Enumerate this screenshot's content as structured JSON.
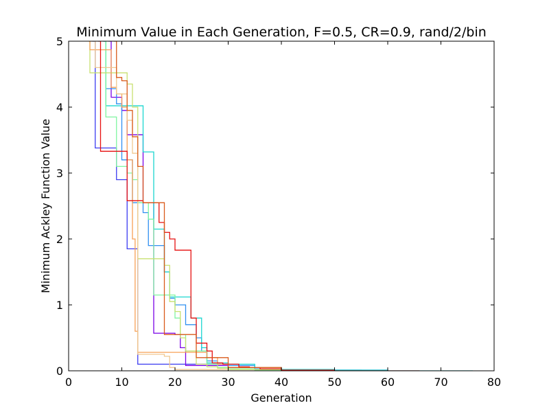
{
  "chart_data": {
    "type": "line",
    "title": "Minimum Value in Each Generation, F=0.5, CR=0.9, rand/2/bin",
    "xlabel": "Generation",
    "ylabel": "Minimum Ackley Function Value",
    "xlim": [
      0,
      80
    ],
    "ylim": [
      0,
      5
    ],
    "xticks": [
      0,
      10,
      20,
      30,
      40,
      50,
      60,
      70,
      80
    ],
    "yticks": [
      0,
      1,
      2,
      3,
      4,
      5
    ],
    "grid": false,
    "legend": "none",
    "series": [
      {
        "color": "#3b3bf0",
        "x": [
          4.5,
          5,
          6,
          7,
          8,
          9,
          10,
          11,
          12,
          13,
          14,
          16,
          18,
          20,
          22,
          24,
          26,
          28,
          30,
          35,
          40,
          60
        ],
        "y": [
          5.0,
          3.38,
          3.38,
          3.38,
          3.38,
          2.9,
          2.9,
          1.85,
          1.85,
          0.1,
          0.1,
          0.1,
          0.1,
          0.1,
          0.1,
          0.1,
          0.1,
          0.1,
          0.05,
          0.03,
          0.01,
          0.0
        ]
      },
      {
        "color": "#7a00e6",
        "x": [
          7.5,
          8,
          9,
          10,
          11,
          12,
          13,
          14,
          15,
          16,
          17,
          18,
          19,
          20,
          21,
          22,
          25,
          30,
          35,
          40,
          50
        ],
        "y": [
          5.0,
          4.15,
          4.15,
          3.95,
          3.58,
          3.58,
          3.58,
          2.55,
          2.55,
          0.57,
          0.57,
          0.57,
          0.57,
          0.55,
          0.35,
          0.08,
          0.08,
          0.05,
          0.03,
          0.01,
          0.0
        ]
      },
      {
        "color": "#2f8ff0",
        "x": [
          6.5,
          7,
          8,
          9,
          10,
          11,
          12,
          13,
          14,
          15,
          16,
          17,
          18,
          19,
          20,
          22,
          24,
          25,
          26,
          28,
          30,
          35,
          40,
          55
        ],
        "y": [
          5.0,
          4.28,
          4.28,
          4.05,
          3.2,
          3.2,
          2.55,
          2.55,
          2.4,
          1.9,
          1.9,
          1.9,
          1.5,
          1.1,
          1.0,
          0.7,
          0.5,
          0.3,
          0.15,
          0.1,
          0.08,
          0.03,
          0.01,
          0.0
        ]
      },
      {
        "color": "#1ad6cf",
        "x": [
          6.5,
          7,
          8,
          9,
          10,
          11,
          12,
          13,
          14,
          15,
          16,
          17,
          18,
          19,
          20,
          21,
          22,
          23,
          24,
          25,
          26,
          28,
          30,
          35,
          40,
          50,
          60,
          70,
          76
        ],
        "y": [
          5.0,
          4.02,
          4.02,
          4.02,
          4.02,
          4.02,
          4.02,
          4.02,
          3.32,
          3.32,
          2.15,
          2.15,
          1.5,
          1.12,
          1.12,
          1.12,
          1.12,
          0.8,
          0.8,
          0.35,
          0.12,
          0.12,
          0.1,
          0.05,
          0.02,
          0.01,
          0.0,
          0.0,
          0.0
        ]
      },
      {
        "color": "#7ff5a0",
        "x": [
          6.5,
          7,
          8,
          9,
          10,
          11,
          12,
          13,
          14,
          15,
          16,
          17,
          18,
          19,
          20,
          21,
          22,
          24,
          26,
          28,
          30,
          35,
          40
        ],
        "y": [
          5.0,
          3.85,
          3.85,
          3.1,
          3.1,
          3.0,
          2.9,
          2.55,
          2.55,
          2.3,
          1.15,
          1.15,
          1.15,
          1.15,
          0.8,
          0.55,
          0.3,
          0.3,
          0.1,
          0.05,
          0.03,
          0.01,
          0.0
        ]
      },
      {
        "color": "#c8e070",
        "x": [
          3.8,
          4,
          5,
          6,
          7,
          8,
          9,
          10,
          11,
          12,
          13,
          14,
          15,
          16,
          17,
          18,
          19,
          20,
          21,
          22,
          24,
          26,
          28,
          30,
          40
        ],
        "y": [
          5.0,
          4.52,
          4.52,
          4.52,
          4.52,
          4.52,
          4.52,
          4.52,
          4.35,
          4.0,
          1.7,
          1.7,
          1.7,
          1.7,
          1.7,
          1.6,
          1.05,
          0.9,
          0.5,
          0.3,
          0.1,
          0.06,
          0.04,
          0.02,
          0.0
        ]
      },
      {
        "color": "#f7a055",
        "x": [
          3.8,
          4,
          5,
          6,
          7,
          8,
          9,
          10,
          11,
          12,
          12.5,
          13,
          14,
          18,
          20,
          22,
          24,
          26,
          28,
          30,
          40
        ],
        "y": [
          5.0,
          4.87,
          4.87,
          4.87,
          4.87,
          4.3,
          4.2,
          4.0,
          3.2,
          2.0,
          0.6,
          0.28,
          0.28,
          0.28,
          0.28,
          0.28,
          0.28,
          0.2,
          0.1,
          0.05,
          0.0
        ]
      },
      {
        "color": "#f0c890",
        "x": [
          4.2,
          5,
          6,
          7,
          8,
          9,
          10,
          11,
          12,
          13,
          14,
          15,
          16,
          17,
          18,
          19,
          20,
          30,
          40
        ],
        "y": [
          5.0,
          4.6,
          4.6,
          4.6,
          4.6,
          4.2,
          4.2,
          3.8,
          3.3,
          0.25,
          0.25,
          0.25,
          0.25,
          0.25,
          0.22,
          0.05,
          0.02,
          0.0,
          0.0
        ]
      },
      {
        "color": "#e60f0f",
        "x": [
          5.5,
          6,
          7,
          8,
          9,
          10,
          11,
          12,
          13,
          14,
          15,
          16,
          17,
          18,
          19,
          20,
          21,
          22,
          23,
          24,
          25,
          26,
          27,
          28,
          29,
          30,
          32,
          34,
          36,
          40,
          50,
          60,
          66
        ],
        "y": [
          5.0,
          3.33,
          3.33,
          3.33,
          3.33,
          3.33,
          2.58,
          2.58,
          2.58,
          2.55,
          2.55,
          2.55,
          2.25,
          2.1,
          2.0,
          1.83,
          1.83,
          1.83,
          0.8,
          0.42,
          0.42,
          0.3,
          0.12,
          0.12,
          0.1,
          0.1,
          0.06,
          0.05,
          0.03,
          0.01,
          0.0,
          0.0,
          0.0
        ]
      },
      {
        "color": "#d95a1a",
        "x": [
          8.5,
          9,
          10,
          11,
          12,
          13,
          14,
          15,
          16,
          17,
          18,
          19,
          20,
          24,
          30,
          40
        ],
        "y": [
          5.0,
          4.45,
          4.4,
          3.95,
          3.55,
          3.1,
          2.55,
          2.55,
          2.55,
          2.55,
          0.55,
          0.55,
          0.55,
          0.2,
          0.05,
          0.0
        ]
      }
    ]
  }
}
